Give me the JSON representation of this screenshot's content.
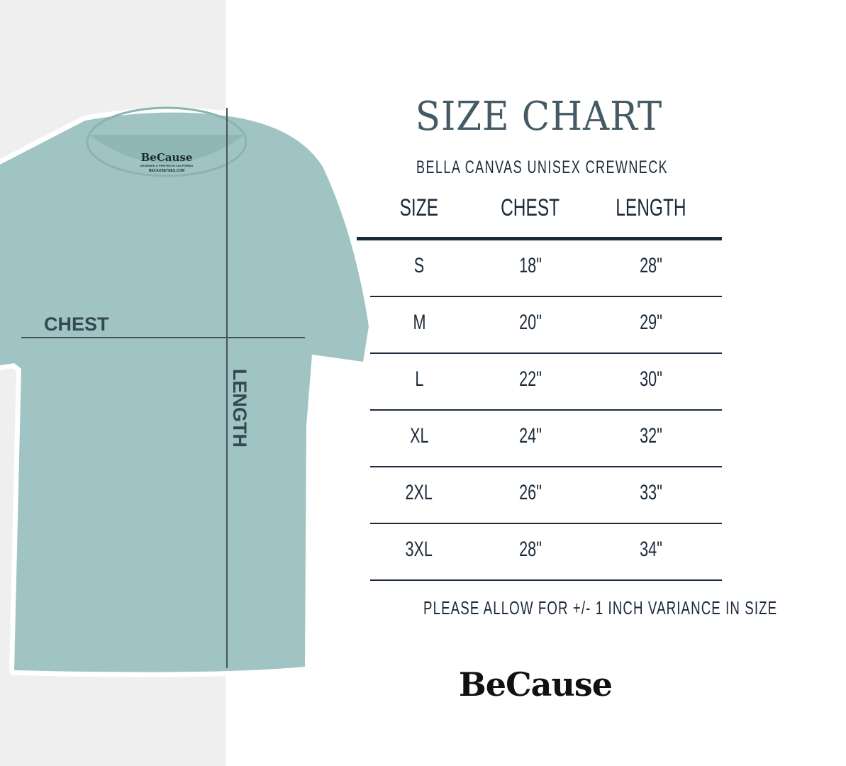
{
  "title": "SIZE CHART",
  "subtitle": "BELLA CANVAS UNISEX CREWNECK",
  "columns": [
    "SIZE",
    "CHEST",
    "LENGTH"
  ],
  "rows": [
    [
      "S",
      "18\"",
      "28\""
    ],
    [
      "M",
      "20\"",
      "29\""
    ],
    [
      "L",
      "22\"",
      "30\""
    ],
    [
      "XL",
      "24\"",
      "32\""
    ],
    [
      "2XL",
      "26\"",
      "33\""
    ],
    [
      "3XL",
      "28\"",
      "34\""
    ]
  ],
  "note": "PLEASE ALLOW FOR +/- 1 INCH VARIANCE IN SIZE",
  "brand": "BeCause",
  "shirt": {
    "chest_label": "CHEST",
    "length_label": "LENGTH",
    "tag_brand": "BeCause",
    "tag_line1": "DESIGNED & PRINTED IN CALIFORNIA",
    "tag_line2": "BECAUSETEES.COM",
    "color": "#9fc4c3"
  },
  "colors": {
    "title": "#455a64",
    "text": "#1b2a3a",
    "left_bg": "#efefef"
  }
}
